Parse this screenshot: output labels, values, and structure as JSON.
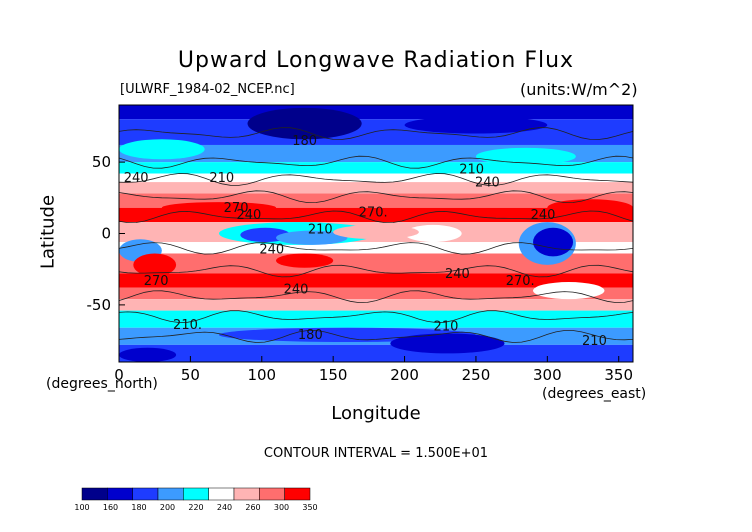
{
  "chart_data": {
    "type": "heatmap",
    "title": "Upward Longwave Radiation Flux",
    "file_label": "[ULWRF_1984-02_NCEP.nc]",
    "units_label": "(units:W/m^2)",
    "xlabel": "Longitude",
    "ylabel": "Latitude",
    "x_unit_label": "(degrees_east)",
    "y_unit_label": "(degrees_north)",
    "contour_interval_label": "CONTOUR INTERVAL = 1.500E+01",
    "xlim": [
      0,
      360
    ],
    "ylim": [
      -90,
      90
    ],
    "x_ticks": [
      0,
      50,
      100,
      150,
      200,
      250,
      300,
      350
    ],
    "y_ticks": [
      50,
      0,
      -50
    ],
    "colorbar": {
      "ticks": [
        100,
        160,
        180,
        200,
        220,
        240,
        260,
        300,
        350
      ],
      "colors": [
        "#00008b",
        "#0000cd",
        "#1e3cff",
        "#3c9bff",
        "#00ffff",
        "#ffffff",
        "#ffb4b4",
        "#ff6e6e",
        "#ff0000"
      ]
    },
    "contour_labels": [
      {
        "text": "180",
        "lon": 130,
        "lat": 62
      },
      {
        "text": "240",
        "lon": 12,
        "lat": 36
      },
      {
        "text": "210",
        "lon": 72,
        "lat": 36
      },
      {
        "text": "210",
        "lon": 247,
        "lat": 42
      },
      {
        "text": "240",
        "lon": 258,
        "lat": 33
      },
      {
        "text": "270",
        "lon": 82,
        "lat": 15
      },
      {
        "text": "240",
        "lon": 91,
        "lat": 10
      },
      {
        "text": "270.",
        "lon": 178,
        "lat": 12
      },
      {
        "text": "240",
        "lon": 297,
        "lat": 10
      },
      {
        "text": "210",
        "lon": 141,
        "lat": 0
      },
      {
        "text": "240",
        "lon": 107,
        "lat": -14
      },
      {
        "text": "240",
        "lon": 237,
        "lat": -31
      },
      {
        "text": "270",
        "lon": 26,
        "lat": -36
      },
      {
        "text": "240",
        "lon": 124,
        "lat": -42
      },
      {
        "text": "270.",
        "lon": 281,
        "lat": -36
      },
      {
        "text": "210.",
        "lon": 48,
        "lat": -67
      },
      {
        "text": "210",
        "lon": 229,
        "lat": -68
      },
      {
        "text": "180",
        "lon": 134,
        "lat": -74
      },
      {
        "text": "210",
        "lon": 333,
        "lat": -78
      }
    ],
    "grid": false
  }
}
